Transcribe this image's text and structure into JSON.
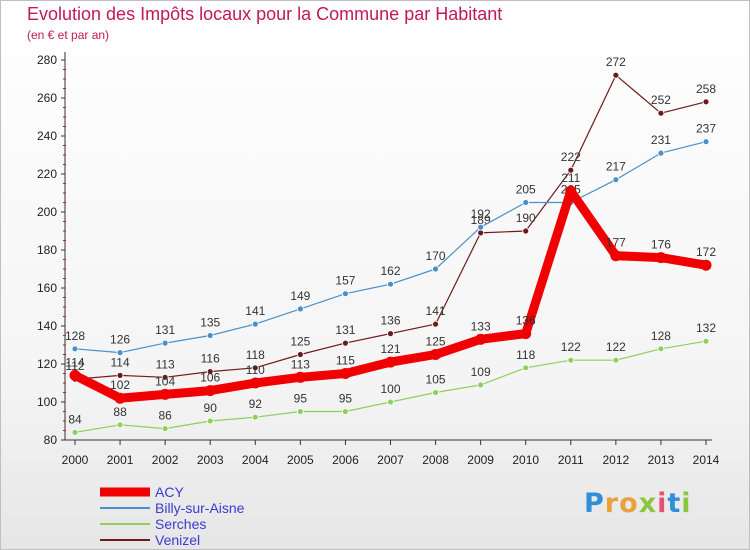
{
  "header": {
    "title": "Evolution des Impôts locaux pour la Commune par Habitant",
    "subtitle": "(en € et par an)"
  },
  "brand": [
    "P",
    "r",
    "o",
    "x",
    "i",
    "t",
    "i"
  ],
  "chart_data": {
    "type": "line",
    "title": "Evolution des Impôts locaux pour la Commune par Habitant",
    "subtitle": "(en € et par an)",
    "xlabel": "",
    "ylabel": "",
    "categories": [
      "2000",
      "2001",
      "2002",
      "2003",
      "2004",
      "2005",
      "2006",
      "2007",
      "2008",
      "2009",
      "2010",
      "2011",
      "2012",
      "2013",
      "2014"
    ],
    "ylim": [
      80,
      280
    ],
    "yticks": [
      80,
      100,
      120,
      140,
      160,
      180,
      200,
      220,
      240,
      260,
      280
    ],
    "grid": false,
    "legend_position": "bottom-left",
    "series": [
      {
        "name": "Venizel",
        "color": "#6d1a1a",
        "values": [
          112,
          114,
          113,
          116,
          118,
          125,
          131,
          136,
          141,
          189,
          190,
          222,
          272,
          252,
          258
        ]
      },
      {
        "name": "Billy-sur-Aisne",
        "color": "#4a90c8",
        "values": [
          128,
          126,
          131,
          135,
          141,
          149,
          157,
          162,
          170,
          192,
          205,
          205,
          217,
          231,
          237
        ]
      },
      {
        "name": "Serches",
        "color": "#8ed05a",
        "values": [
          84,
          88,
          86,
          90,
          92,
          95,
          95,
          100,
          105,
          109,
          118,
          122,
          122,
          128,
          132
        ]
      },
      {
        "name": "ACY",
        "color": "#f00000",
        "values": [
          114,
          102,
          104,
          106,
          110,
          113,
          115,
          121,
          125,
          133,
          136,
          211,
          177,
          176,
          172
        ]
      }
    ],
    "legend_order": [
      "ACY",
      "Billy-sur-Aisne",
      "Serches",
      "Venizel"
    ]
  }
}
